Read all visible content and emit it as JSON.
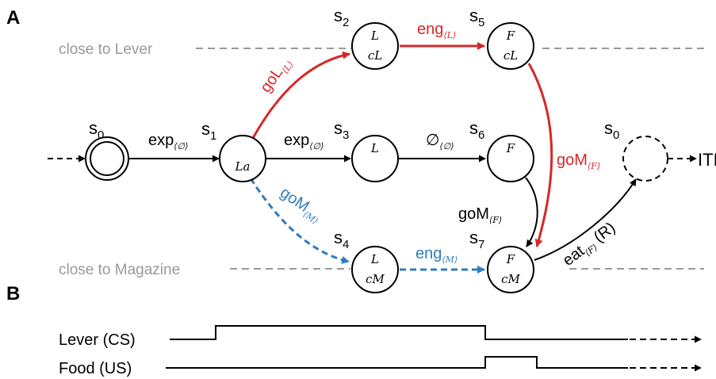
{
  "panels": {
    "a": "A",
    "b": "B"
  },
  "zones": {
    "lever": "close to Lever",
    "magazine": "close to Magazine"
  },
  "state_letter": "s",
  "states": {
    "s0_start": {
      "sub": "0"
    },
    "s1": {
      "sub": "1",
      "top": "La",
      "bottom": ""
    },
    "s2": {
      "sub": "2",
      "top": "L",
      "bottom": "cL"
    },
    "s3": {
      "sub": "3",
      "top": "L",
      "bottom": ""
    },
    "s4": {
      "sub": "4",
      "top": "L",
      "bottom": "cM"
    },
    "s5": {
      "sub": "5",
      "top": "F",
      "bottom": "cL"
    },
    "s6": {
      "sub": "6",
      "top": "F",
      "bottom": ""
    },
    "s7": {
      "sub": "7",
      "top": "F",
      "bottom": "cM"
    },
    "s0_end": {
      "sub": "0"
    }
  },
  "edges": {
    "exp_s0_s1": {
      "base": "exp",
      "sub": "⟨∅⟩"
    },
    "exp_s1_s3": {
      "base": "exp",
      "sub": "⟨∅⟩"
    },
    "null_s3_s6": {
      "base": "∅",
      "sub": "⟨∅⟩"
    },
    "goL": {
      "base": "goL",
      "sub": "⟨L⟩"
    },
    "eng_L": {
      "base": "eng",
      "sub": "⟨L⟩"
    },
    "goM_M": {
      "base": "goM",
      "sub": "⟨M⟩"
    },
    "eng_M": {
      "base": "eng",
      "sub": "⟨M⟩"
    },
    "goM_F_red": {
      "base": "goM",
      "sub": "⟨F⟩"
    },
    "goM_F_black": {
      "base": "goM",
      "sub": "⟨F⟩"
    },
    "eat": {
      "base": "eat",
      "sub": "⟨F⟩",
      "suffix": "(R)"
    }
  },
  "iti": "ITI",
  "timeline": {
    "lever": "Lever (CS)",
    "food": "Food (US)"
  },
  "colors": {
    "red": "#d62728",
    "blue": "#2f7dbf",
    "gray": "#999999",
    "black": "#000000"
  }
}
